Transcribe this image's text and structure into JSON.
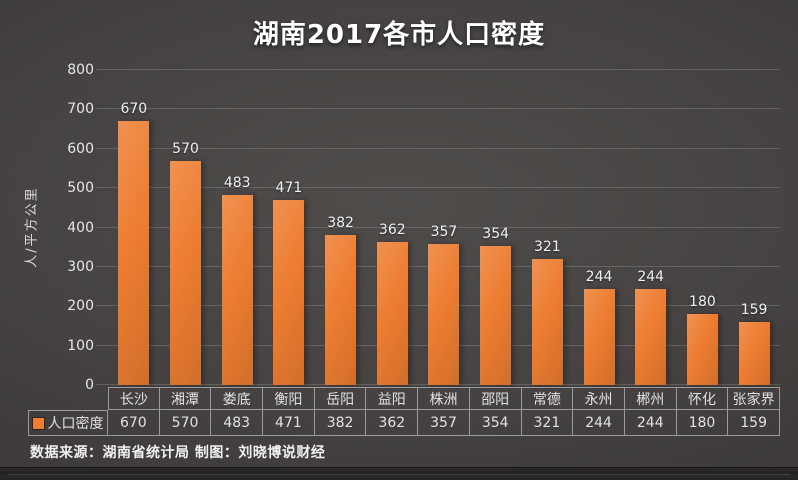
{
  "title": "湖南2017各市人口密度",
  "footer": "数据来源：湖南省统计局 制图：刘晓博说财经",
  "colors": {
    "bar": "#ED7D31",
    "background": "#3E3A39",
    "text": "#F2F0EE",
    "table_border": "#9B9B9B"
  },
  "chart_data": {
    "type": "bar",
    "title": "湖南2017各市人口密度",
    "categories": [
      "长沙",
      "湘潭",
      "娄底",
      "衡阳",
      "岳阳",
      "益阳",
      "株洲",
      "邵阳",
      "常德",
      "永州",
      "郴州",
      "怀化",
      "张家界"
    ],
    "series": [
      {
        "name": "人口密度",
        "values": [
          670,
          570,
          483,
          471,
          382,
          362,
          357,
          354,
          321,
          244,
          244,
          180,
          159
        ]
      }
    ],
    "ylabel": "人/平方公里",
    "xlabel": "",
    "ylim": [
      0,
      800
    ],
    "ytick_step": 100,
    "grid": true,
    "legend_position": "table-row-header",
    "data_labels": true,
    "data_table": true
  }
}
